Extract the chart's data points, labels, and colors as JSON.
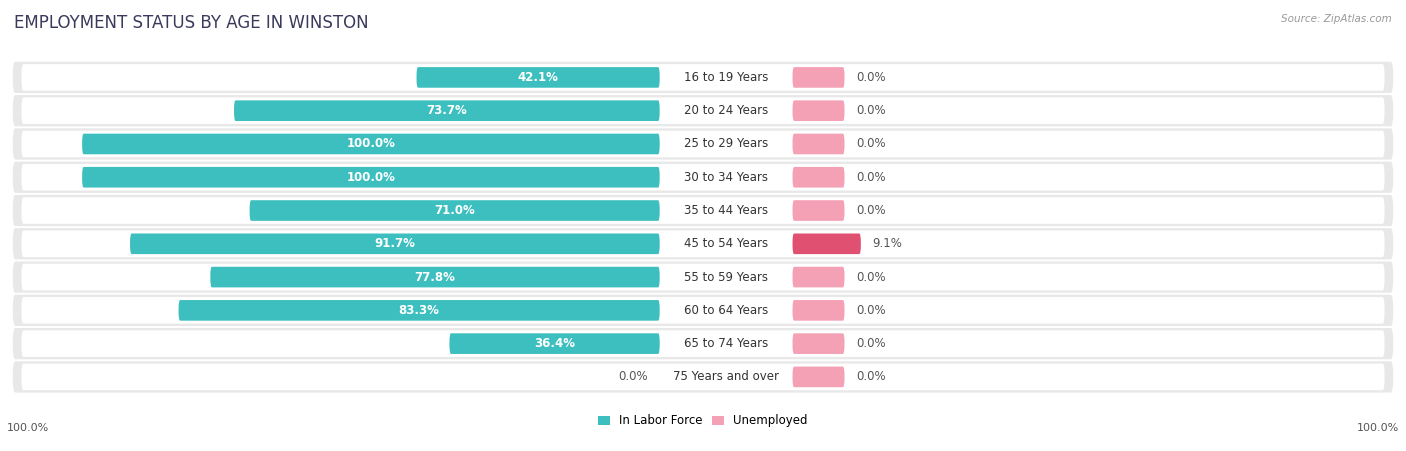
{
  "title": "EMPLOYMENT STATUS BY AGE IN WINSTON",
  "source": "Source: ZipAtlas.com",
  "categories": [
    "16 to 19 Years",
    "20 to 24 Years",
    "25 to 29 Years",
    "30 to 34 Years",
    "35 to 44 Years",
    "45 to 54 Years",
    "55 to 59 Years",
    "60 to 64 Years",
    "65 to 74 Years",
    "75 Years and over"
  ],
  "labor_force": [
    42.1,
    73.7,
    100.0,
    100.0,
    71.0,
    91.7,
    77.8,
    83.3,
    36.4,
    0.0
  ],
  "unemployed": [
    0.0,
    0.0,
    0.0,
    0.0,
    0.0,
    9.1,
    0.0,
    0.0,
    0.0,
    0.0
  ],
  "labor_force_color": "#3dbfbf",
  "unemployed_color": "#f4a0b5",
  "unemployed_highlight_color": "#e05070",
  "row_bg_color": "#e8e8e8",
  "background_color": "#ffffff",
  "title_fontsize": 12,
  "label_fontsize": 8.5,
  "axis_label_fontsize": 8,
  "title_color": "#3a3a5c",
  "text_color": "#333333",
  "dim_text_color": "#555555",
  "left_axis_label": "100.0%",
  "right_axis_label": "100.0%",
  "unemployed_small_bar_width": 9.0
}
